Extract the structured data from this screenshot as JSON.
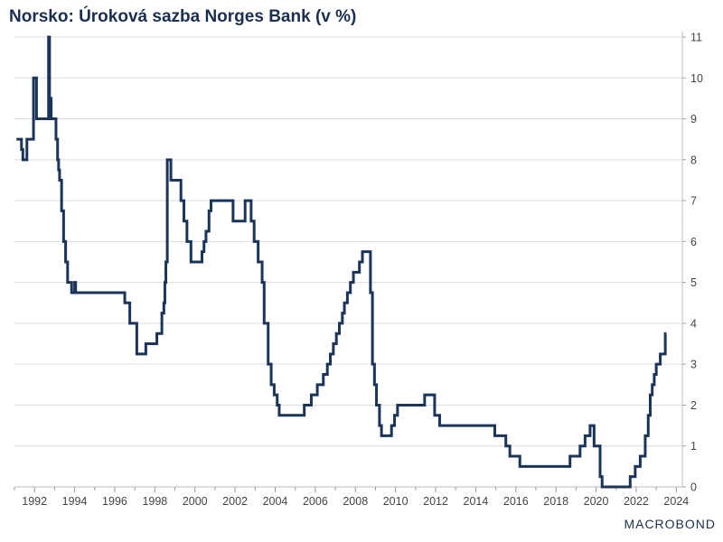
{
  "chart_data": {
    "type": "line",
    "title": "Norsko: Úroková sazba Norges Bank (v %)",
    "xlabel": "",
    "ylabel": "",
    "xlim": [
      1991.0,
      2024.3
    ],
    "ylim": [
      0,
      11
    ],
    "y_axis_side": "right",
    "grid": "horizontal",
    "legend": "none",
    "line_color": "#1b3459",
    "x_ticks": [
      "1992",
      "1994",
      "1996",
      "1998",
      "2000",
      "2002",
      "2004",
      "2006",
      "2008",
      "2010",
      "2012",
      "2014",
      "2016",
      "2018",
      "2020",
      "2022",
      "2024"
    ],
    "y_ticks": [
      "0",
      "1",
      "2",
      "3",
      "4",
      "5",
      "6",
      "7",
      "8",
      "9",
      "10",
      "11"
    ],
    "step": true,
    "series": [
      {
        "x": [
          1991.1,
          1991.35,
          1991.42,
          1991.62,
          1991.95,
          1992.1,
          1992.35,
          1992.7,
          1992.75,
          1992.83,
          1993.07,
          1993.15,
          1993.2,
          1993.25,
          1993.35,
          1993.45,
          1993.55,
          1993.65,
          1993.85,
          1994.0,
          1994.05,
          1994.1,
          1994.15,
          1996.5,
          1996.75,
          1997.1,
          1997.55,
          1998.1,
          1998.35,
          1998.45,
          1998.5,
          1998.55,
          1998.62,
          1998.7,
          1998.8,
          1999.3,
          1999.45,
          1999.6,
          1999.8,
          2000.0,
          2000.35,
          2000.45,
          2000.55,
          2000.7,
          2000.8,
          2001.9,
          2002.5,
          2002.8,
          2002.95,
          2003.15,
          2003.35,
          2003.45,
          2003.65,
          2003.8,
          2003.95,
          2004.1,
          2004.2,
          2005.45,
          2005.8,
          2006.1,
          2006.4,
          2006.6,
          2006.75,
          2006.9,
          2007.05,
          2007.2,
          2007.35,
          2007.45,
          2007.6,
          2007.75,
          2007.9,
          2008.0,
          2008.2,
          2008.35,
          2008.4,
          2008.75,
          2008.85,
          2008.95,
          2009.05,
          2009.2,
          2009.3,
          2009.45,
          2009.8,
          2009.95,
          2010.1,
          2010.4,
          2011.45,
          2011.95,
          2012.2,
          2014.95,
          2015.5,
          2015.7,
          2016.2,
          2018.7,
          2019.2,
          2019.45,
          2019.7,
          2019.9,
          2020.2,
          2020.3,
          2020.45,
          2021.7,
          2021.95,
          2022.2,
          2022.45,
          2022.6,
          2022.7,
          2022.8,
          2022.9,
          2023.0,
          2023.2,
          2023.45,
          2023.5
        ],
        "y": [
          8.5,
          8.25,
          8.0,
          8.5,
          10.0,
          9.0,
          9.0,
          11.0,
          9.5,
          9.0,
          8.5,
          8.0,
          7.75,
          7.5,
          6.75,
          6.0,
          5.5,
          5.0,
          4.75,
          5.0,
          4.75,
          4.75,
          4.75,
          4.5,
          4.0,
          3.25,
          3.5,
          3.75,
          4.25,
          4.5,
          5.0,
          5.5,
          8.0,
          8.0,
          7.5,
          7.0,
          6.5,
          6.0,
          5.5,
          5.5,
          5.75,
          6.0,
          6.25,
          6.75,
          7.0,
          6.5,
          7.0,
          6.5,
          6.0,
          5.5,
          5.0,
          4.0,
          3.0,
          2.5,
          2.25,
          2.0,
          1.75,
          2.0,
          2.25,
          2.5,
          2.75,
          3.0,
          3.25,
          3.5,
          3.75,
          4.0,
          4.25,
          4.5,
          4.75,
          5.0,
          5.25,
          5.25,
          5.5,
          5.75,
          5.75,
          4.75,
          3.0,
          2.5,
          2.0,
          1.5,
          1.25,
          1.25,
          1.5,
          1.75,
          2.0,
          2.0,
          2.25,
          1.75,
          1.5,
          1.25,
          1.0,
          0.75,
          0.5,
          0.75,
          1.0,
          1.25,
          1.5,
          1.0,
          0.25,
          0.0,
          0.0,
          0.25,
          0.5,
          0.75,
          1.25,
          1.75,
          2.25,
          2.5,
          2.75,
          3.0,
          3.25,
          3.75,
          3.75
        ]
      }
    ]
  },
  "branding": {
    "logo_text": "MACROBOND"
  }
}
